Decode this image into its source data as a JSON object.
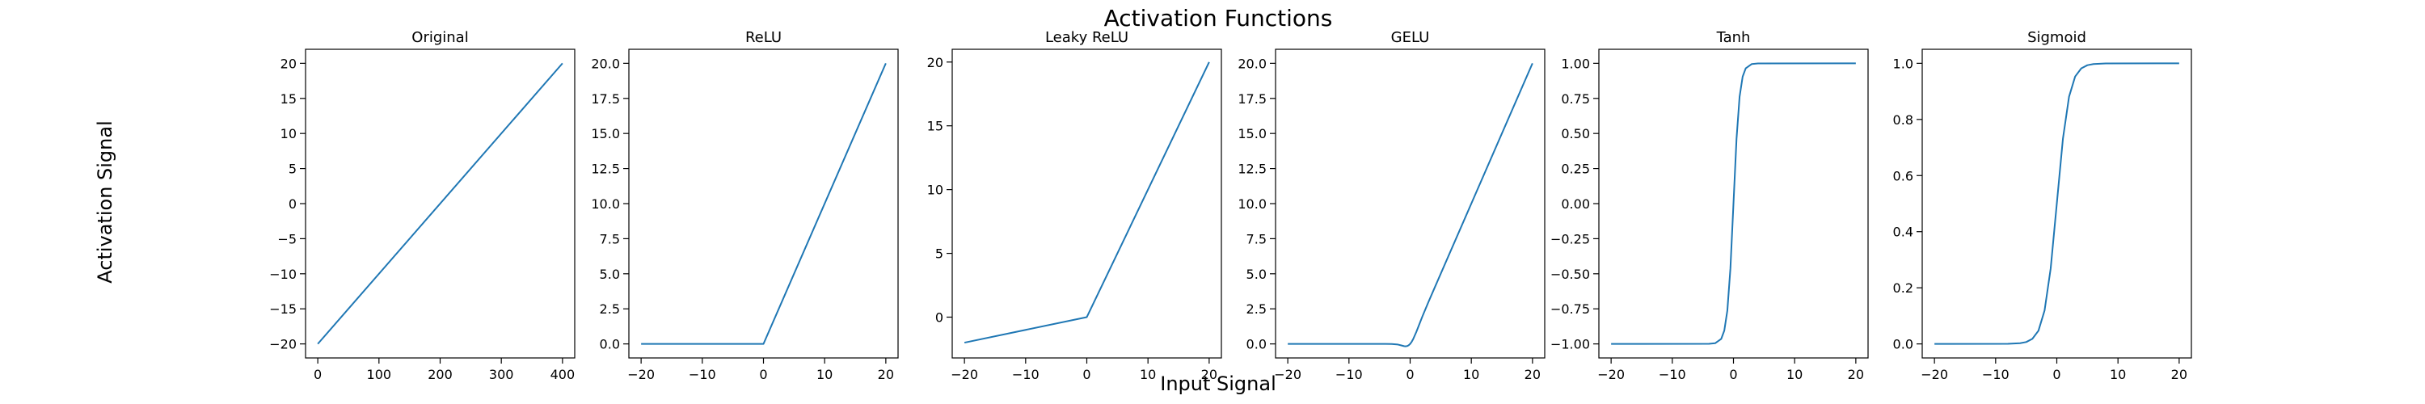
{
  "figure": {
    "title": "Activation Functions",
    "xlabel": "Input Signal",
    "ylabel": "Activation Signal"
  },
  "colors": {
    "line": "#1f77b4",
    "axes": "#000000",
    "background": "#ffffff"
  },
  "chart_data": [
    {
      "type": "line",
      "title": "Original",
      "x_range": [
        0,
        400
      ],
      "ylim": [
        -22,
        22
      ],
      "xticks": [
        0,
        100,
        200,
        300,
        400
      ],
      "xtick_labels": [
        "0",
        "100",
        "200",
        "300",
        "400"
      ],
      "yticks": [
        -20,
        -15,
        -10,
        -5,
        0,
        5,
        10,
        15,
        20
      ],
      "ytick_labels": [
        "−20",
        "−15",
        "−10",
        "−5",
        "0",
        "5",
        "10",
        "15",
        "20"
      ],
      "series": [
        {
          "x": [
            0,
            400
          ],
          "y": [
            -20,
            20
          ]
        }
      ]
    },
    {
      "type": "line",
      "title": "ReLU",
      "x_range": [
        -20,
        20
      ],
      "ylim": [
        -1,
        21
      ],
      "xticks": [
        -20,
        -10,
        0,
        10,
        20
      ],
      "xtick_labels": [
        "−20",
        "−10",
        "0",
        "10",
        "20"
      ],
      "yticks": [
        0,
        2.5,
        5,
        7.5,
        10,
        12.5,
        15,
        17.5,
        20
      ],
      "ytick_labels": [
        "0.0",
        "2.5",
        "5.0",
        "7.5",
        "10.0",
        "12.5",
        "15.0",
        "17.5",
        "20.0"
      ],
      "series": [
        {
          "x": [
            -20,
            0,
            20
          ],
          "y": [
            0,
            0,
            20
          ]
        }
      ]
    },
    {
      "type": "line",
      "title": "Leaky ReLU",
      "x_range": [
        -20,
        20
      ],
      "ylim": [
        -3.2,
        21
      ],
      "xticks": [
        -20,
        -10,
        0,
        10,
        20
      ],
      "xtick_labels": [
        "−20",
        "−10",
        "0",
        "10",
        "20"
      ],
      "yticks": [
        0,
        5,
        10,
        15,
        20
      ],
      "ytick_labels": [
        "0",
        "5",
        "10",
        "15",
        "20"
      ],
      "series": [
        {
          "x": [
            -20,
            0,
            20
          ],
          "y": [
            -2,
            0,
            20
          ]
        }
      ]
    },
    {
      "type": "line",
      "title": "GELU",
      "x_range": [
        -20,
        20
      ],
      "ylim": [
        -1,
        21
      ],
      "xticks": [
        -20,
        -10,
        0,
        10,
        20
      ],
      "xtick_labels": [
        "−20",
        "−10",
        "0",
        "10",
        "20"
      ],
      "yticks": [
        0,
        2.5,
        5,
        7.5,
        10,
        12.5,
        15,
        17.5,
        20
      ],
      "ytick_labels": [
        "0.0",
        "2.5",
        "5.0",
        "7.5",
        "10.0",
        "12.5",
        "15.0",
        "17.5",
        "20.0"
      ],
      "series": [
        {
          "x": [
            -20,
            -10,
            -4,
            -3,
            -2,
            -1.5,
            -1,
            -0.75,
            -0.5,
            -0.25,
            0,
            0.25,
            0.5,
            1,
            1.5,
            2,
            3,
            4,
            10,
            20
          ],
          "y": [
            0,
            0,
            -0.0001,
            -0.004,
            -0.045,
            -0.1,
            -0.159,
            -0.17,
            -0.154,
            -0.1,
            0,
            0.15,
            0.346,
            0.841,
            1.4,
            1.955,
            2.996,
            4,
            10,
            20
          ]
        }
      ]
    },
    {
      "type": "line",
      "title": "Tanh",
      "x_range": [
        -20,
        20
      ],
      "ylim": [
        -1.1,
        1.1
      ],
      "xticks": [
        -20,
        -10,
        0,
        10,
        20
      ],
      "xtick_labels": [
        "−20",
        "−10",
        "0",
        "10",
        "20"
      ],
      "yticks": [
        -1,
        -0.75,
        -0.5,
        -0.25,
        0,
        0.25,
        0.5,
        0.75,
        1
      ],
      "ytick_labels": [
        "−1.00",
        "−0.75",
        "−0.50",
        "−0.25",
        "0.00",
        "0.25",
        "0.50",
        "0.75",
        "1.00"
      ],
      "series": [
        {
          "x": [
            -20,
            -4,
            -3,
            -2,
            -1.5,
            -1,
            -0.5,
            0,
            0.5,
            1,
            1.5,
            2,
            3,
            4,
            20
          ],
          "y": [
            -1,
            -0.999,
            -0.995,
            -0.964,
            -0.905,
            -0.762,
            -0.462,
            0,
            0.462,
            0.762,
            0.905,
            0.964,
            0.995,
            0.999,
            1
          ]
        }
      ]
    },
    {
      "type": "line",
      "title": "Sigmoid",
      "x_range": [
        -20,
        20
      ],
      "ylim": [
        -0.05,
        1.05
      ],
      "xticks": [
        -20,
        -10,
        0,
        10,
        20
      ],
      "xtick_labels": [
        "−20",
        "−10",
        "0",
        "10",
        "20"
      ],
      "yticks": [
        0,
        0.2,
        0.4,
        0.6,
        0.8,
        1
      ],
      "ytick_labels": [
        "0.0",
        "0.2",
        "0.4",
        "0.6",
        "0.8",
        "1.0"
      ],
      "series": [
        {
          "x": [
            -20,
            -8,
            -6,
            -5,
            -4,
            -3,
            -2,
            -1,
            0,
            1,
            2,
            3,
            4,
            5,
            6,
            8,
            20
          ],
          "y": [
            0,
            0.0003,
            0.0025,
            0.0067,
            0.018,
            0.047,
            0.119,
            0.269,
            0.5,
            0.731,
            0.881,
            0.953,
            0.982,
            0.9933,
            0.9975,
            0.9997,
            1
          ]
        }
      ]
    }
  ]
}
